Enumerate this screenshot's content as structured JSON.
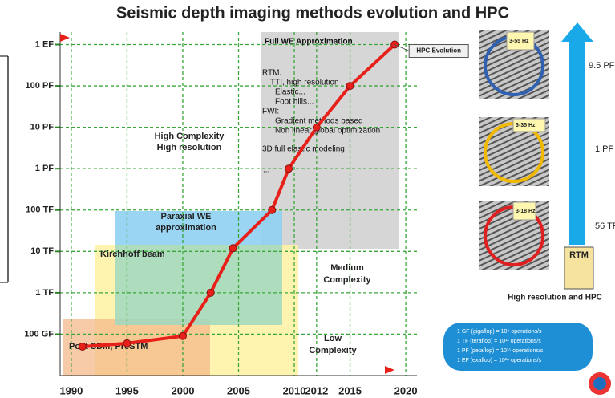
{
  "chart_data": {
    "type": "line",
    "title": "Seismic depth imaging methods evolution and HPC",
    "x": [
      1991,
      1995,
      2000,
      2002.5,
      2004.5,
      2008,
      2009.5,
      2012,
      2015,
      2019
    ],
    "series": [
      {
        "name": "HPC Evolution",
        "color": "#e8201a",
        "values": [
          50000000000,
          60000000000,
          90000000000,
          1000000000000,
          12000000000000,
          100000000000000,
          1000000000000000,
          10000000000000000,
          100000000000000000,
          1000000000000000000
        ]
      }
    ],
    "xlim": [
      1989,
      2021
    ],
    "xticks": [
      1990,
      1995,
      2000,
      2005,
      2010,
      2012,
      2015,
      2020
    ],
    "ylim": [
      10000000000,
      2000000000000000000
    ],
    "log_y": true,
    "yticks": [
      {
        "value": 100000000000,
        "label": "100 GF"
      },
      {
        "value": 1000000000000,
        "label": "1 TF"
      },
      {
        "value": 10000000000000,
        "label": "10 TF"
      },
      {
        "value": 100000000000000,
        "label": "100 TF"
      },
      {
        "value": 1000000000000000,
        "label": "1 PF"
      },
      {
        "value": 10000000000000000,
        "label": "10 PF"
      },
      {
        "value": 100000000000000000,
        "label": "100 PF"
      },
      {
        "value": 1000000000000000000,
        "label": "1 EF"
      }
    ],
    "grid": true,
    "grid_color": "#3aa63a",
    "annotations": {
      "full_we": "Full WE Approximation",
      "rtm_lines": [
        "RTM:",
        "TTI, high resolution",
        "Elastic...",
        "Foot hills...",
        "FWI:",
        "Gradient methods based",
        "Non linear global optimization",
        "3D full elastic modeling",
        "..."
      ],
      "high": [
        "High Complexity",
        "High resolution"
      ],
      "paraxial": [
        "Paraxial WE",
        "approximation"
      ],
      "kirchhoff": "Kirchhoff  beam",
      "medium": [
        "Medium",
        "Complexity"
      ],
      "low": [
        "Low",
        "Complexity"
      ],
      "post_sdm": "Post SDM, PreSTM"
    }
  },
  "side_panel": {
    "bands": [
      "3-55 Hz",
      "3-35 Hz",
      "3-18 Hz"
    ],
    "levels": [
      "9.5 PF",
      "1 PF",
      "56 TF"
    ],
    "method": "RTM",
    "caption": "High resolution  and HPC"
  },
  "units_box": [
    "1 GF (gigaflop) = 10⁹ operations/s",
    "1 TF (teraflop) = 10¹² operations/s",
    "1 PF (petaflop) = 10¹⁵ operations/s",
    "1 EF (exaflop) = 10¹⁸ operations/s"
  ]
}
